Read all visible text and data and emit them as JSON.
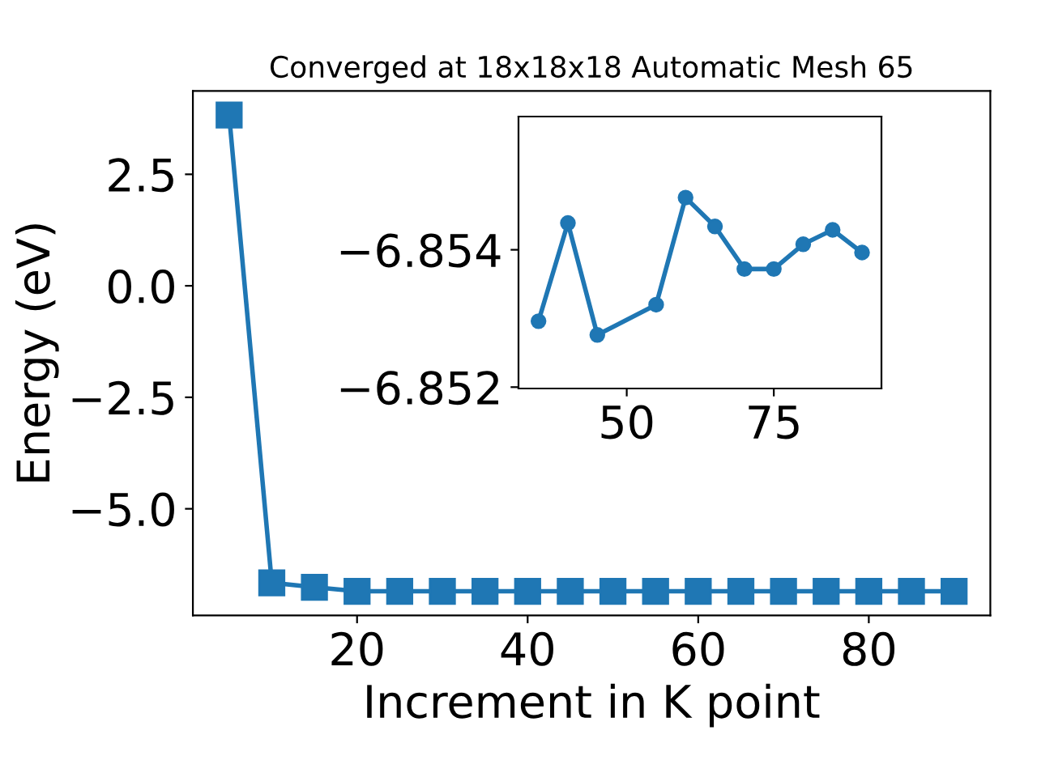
{
  "chart_data": [
    {
      "type": "line",
      "title": "Converged at 18x18x18 Automatic Mesh 65",
      "xlabel": "Increment in K point",
      "ylabel": "Energy (eV)",
      "marker": "square",
      "line_style": "solid",
      "grid": false,
      "legend": false,
      "x": [
        5,
        10,
        15,
        20,
        25,
        30,
        35,
        40,
        45,
        50,
        55,
        60,
        65,
        70,
        75,
        80,
        85,
        90
      ],
      "series": [
        {
          "color": "#1f77b4",
          "values": [
            3.83,
            -6.66,
            -6.76,
            -6.85,
            -6.85,
            -6.85,
            -6.85,
            -6.85,
            -6.85,
            -6.85,
            -6.85,
            -6.85,
            -6.85,
            -6.85,
            -6.85,
            -6.85,
            -6.85,
            -6.85
          ]
        }
      ],
      "xlim": [
        0.75,
        94.25
      ],
      "ylim": [
        -7.39,
        4.37
      ],
      "xticks": [
        20,
        40,
        60,
        80
      ],
      "yticks": [
        {
          "value": -5,
          "label": "−5.0"
        },
        -2.5,
        {
          "value": 0,
          "label": "0.0"
        },
        2.5
      ]
    },
    {
      "type": "line",
      "marker": "circle",
      "line_style": "solid",
      "grid": false,
      "legend": false,
      "x": [
        35,
        40,
        45,
        55,
        60,
        65,
        70,
        75,
        80,
        85,
        90
      ],
      "series": [
        {
          "color": "#1f77b4",
          "values": [
            -6.85296,
            -6.85439,
            -6.85276,
            -6.8532,
            -6.85476,
            -6.85434,
            -6.85372,
            -6.85372,
            -6.85408,
            -6.85429,
            -6.85396
          ]
        }
      ],
      "xlim": [
        31.6,
        93.3
      ],
      "ylim": [
        -6.85198,
        -6.85594
      ],
      "xticks": [
        50,
        75
      ],
      "yticks": [
        -6.854,
        -6.852
      ]
    }
  ]
}
